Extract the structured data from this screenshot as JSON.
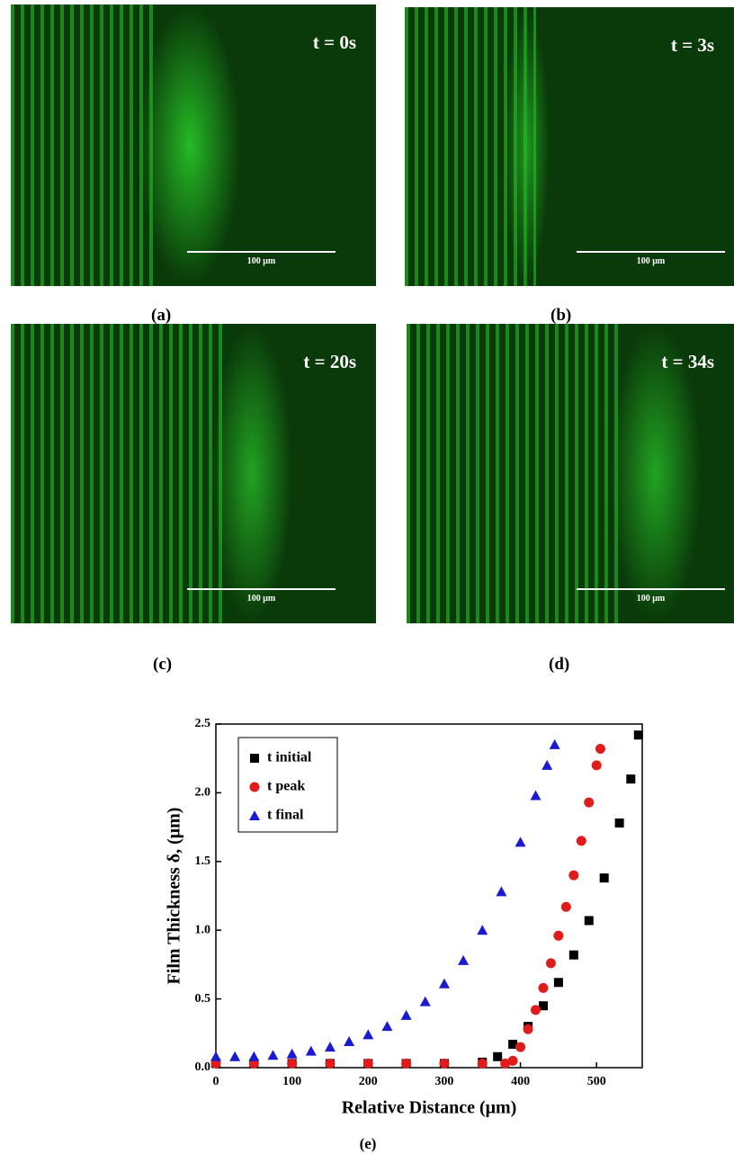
{
  "figure_panels": [
    {
      "time": "t = 0s",
      "scale_label": "100 μm",
      "label": "(a)"
    },
    {
      "time": "t = 3s",
      "scale_label": "100 μm",
      "label": "(b)"
    },
    {
      "time": "t = 20s",
      "scale_label": "100 μm",
      "label": "(c)"
    },
    {
      "time": "t = 34s",
      "scale_label": "100 μm",
      "label": "(d)"
    }
  ],
  "chart_data": {
    "type": "scatter",
    "caption": "(e)",
    "x_label": "Relative Distance (μm)",
    "y_label": "Film Thickness δ, (μm)",
    "xlim": [
      0,
      560
    ],
    "ylim": [
      0,
      2.5
    ],
    "xticks": [
      0,
      100,
      200,
      300,
      400,
      500
    ],
    "yticks": [
      {
        "value": 0,
        "label": "0.0"
      },
      0.5,
      {
        "value": 1,
        "label": "1.0"
      },
      1.5,
      {
        "value": 2,
        "label": "2.0"
      },
      2.5
    ],
    "legend": "upper left",
    "series": [
      {
        "name": "t initial",
        "color": "#000000",
        "marker": "square",
        "x": [
          0,
          50,
          100,
          150,
          200,
          250,
          300,
          350,
          370,
          390,
          410,
          430,
          450,
          470,
          490,
          510,
          530,
          545,
          555
        ],
        "values": [
          0.03,
          0.03,
          0.03,
          0.03,
          0.03,
          0.03,
          0.03,
          0.04,
          0.08,
          0.17,
          0.3,
          0.45,
          0.62,
          0.82,
          1.07,
          1.38,
          1.78,
          2.1,
          2.42
        ]
      },
      {
        "name": "t peak",
        "color": "#e01b1b",
        "marker": "circle",
        "x": [
          0,
          50,
          100,
          150,
          200,
          250,
          300,
          350,
          380,
          390,
          400,
          410,
          420,
          430,
          440,
          450,
          460,
          470,
          480,
          490,
          500,
          505
        ],
        "values": [
          0.03,
          0.03,
          0.03,
          0.03,
          0.03,
          0.03,
          0.03,
          0.03,
          0.03,
          0.05,
          0.15,
          0.28,
          0.42,
          0.58,
          0.76,
          0.96,
          1.17,
          1.4,
          1.65,
          1.93,
          2.2,
          2.32
        ]
      },
      {
        "name": "t final",
        "color": "#1a1ad0",
        "marker": "triangle",
        "x": [
          0,
          25,
          50,
          75,
          100,
          125,
          150,
          175,
          200,
          225,
          250,
          275,
          300,
          325,
          350,
          375,
          400,
          420,
          435,
          445
        ],
        "values": [
          0.08,
          0.08,
          0.08,
          0.09,
          0.1,
          0.12,
          0.15,
          0.19,
          0.24,
          0.3,
          0.38,
          0.48,
          0.61,
          0.78,
          1.0,
          1.28,
          1.64,
          1.98,
          2.2,
          2.35
        ]
      }
    ]
  }
}
